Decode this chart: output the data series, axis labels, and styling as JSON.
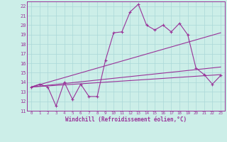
{
  "xlabel": "Windchill (Refroidissement éolien,°C)",
  "bg_color": "#cceee8",
  "grid_color": "#aad8d8",
  "line_color": "#993399",
  "xlim": [
    -0.5,
    23.5
  ],
  "ylim": [
    11,
    22.5
  ],
  "xticks": [
    0,
    1,
    2,
    3,
    4,
    5,
    6,
    7,
    8,
    9,
    10,
    11,
    12,
    13,
    14,
    15,
    16,
    17,
    18,
    19,
    20,
    21,
    22,
    23
  ],
  "yticks": [
    11,
    12,
    13,
    14,
    15,
    16,
    17,
    18,
    19,
    20,
    21,
    22
  ],
  "series1_x": [
    0,
    1,
    2,
    3,
    4,
    5,
    6,
    7,
    8,
    9,
    10,
    11,
    12,
    13,
    14,
    15,
    16,
    17,
    18,
    19,
    20,
    21,
    22,
    23
  ],
  "series1_y": [
    13.5,
    13.8,
    13.5,
    11.5,
    14.0,
    12.2,
    13.8,
    12.5,
    12.5,
    16.3,
    19.2,
    19.3,
    21.4,
    22.2,
    20.0,
    19.5,
    20.0,
    19.3,
    20.2,
    19.0,
    15.5,
    14.8,
    13.8,
    14.7
  ],
  "series2_x": [
    0,
    23
  ],
  "series2_y": [
    13.5,
    19.2
  ],
  "series3_x": [
    0,
    23
  ],
  "series3_y": [
    13.5,
    14.8
  ],
  "series4_x": [
    0,
    23
  ],
  "series4_y": [
    13.5,
    15.6
  ]
}
